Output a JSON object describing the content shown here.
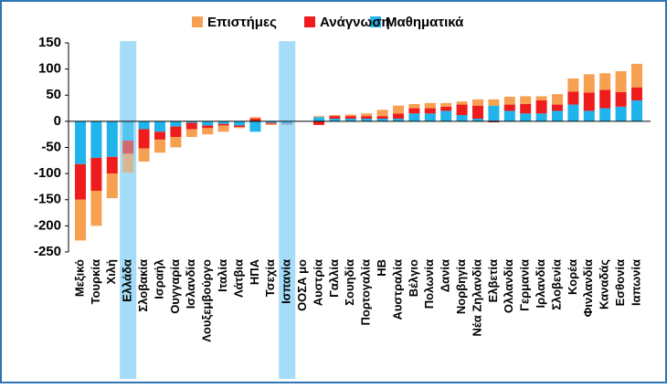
{
  "chart_data": {
    "type": "bar",
    "stacked": true,
    "categories": [
      "Μεξικό",
      "Τουρκία",
      "Χιλή",
      "Ελλάδα",
      "Σλοβακία",
      "Ισραήλ",
      "Ουγγαρία",
      "Ισλανδία",
      "Λουξεμβούργο",
      "Ιταλία",
      "Λάτβια",
      "ΗΠΑ",
      "Τσεχία",
      "Ισπανία",
      "ΟΟΣΑ μο",
      "Αυστρία",
      "Γαλλία",
      "Σουηδία",
      "Πορτογαλία",
      "ΗΒ",
      "Αυστραλία",
      "Βέλγιο",
      "Πολωνία",
      "Δανία",
      "Νορβηγία",
      "Νέα Ζηλανδία",
      "Ελβετία",
      "Ολλανδία",
      "Γερμανία",
      "Ιρλανδία",
      "Σλοβενία",
      "Κορέα",
      "Φινλανδία",
      "Καναδάς",
      "Εσθονία",
      "Ιαπωνία"
    ],
    "series": [
      {
        "name": "Μαθηματικά",
        "color": "#1fb4ec",
        "values": [
          -82,
          -70,
          -68,
          -37,
          -15,
          -20,
          -10,
          -3,
          -8,
          -5,
          -8,
          -20,
          -3,
          -5,
          0,
          8,
          5,
          5,
          5,
          5,
          5,
          15,
          15,
          20,
          12,
          5,
          30,
          20,
          15,
          15,
          20,
          32,
          20,
          25,
          28,
          40
        ]
      },
      {
        "name": "Ανάγνωση",
        "color": "#ee1c1c",
        "values": [
          -68,
          -63,
          -32,
          -25,
          -37,
          -15,
          -20,
          -12,
          -5,
          -3,
          -3,
          5,
          -2,
          -1,
          0,
          -7,
          5,
          5,
          5,
          5,
          10,
          10,
          10,
          8,
          20,
          25,
          -2,
          12,
          18,
          25,
          12,
          25,
          35,
          35,
          28,
          25
        ]
      },
      {
        "name": "Επιστήμες",
        "color": "#f7a052",
        "values": [
          -78,
          -67,
          -47,
          -36,
          -25,
          -25,
          -20,
          -15,
          -12,
          -12,
          -2,
          3,
          -2,
          0,
          0,
          2,
          2,
          3,
          5,
          12,
          15,
          8,
          10,
          7,
          6,
          12,
          12,
          15,
          15,
          8,
          20,
          25,
          35,
          32,
          40,
          45
        ]
      }
    ],
    "ylim": [
      -250,
      150
    ],
    "yticks": [
      -250,
      -200,
      -150,
      -100,
      -50,
      0,
      50,
      100,
      150
    ],
    "highlight": [
      3,
      13
    ],
    "legend": "top"
  }
}
